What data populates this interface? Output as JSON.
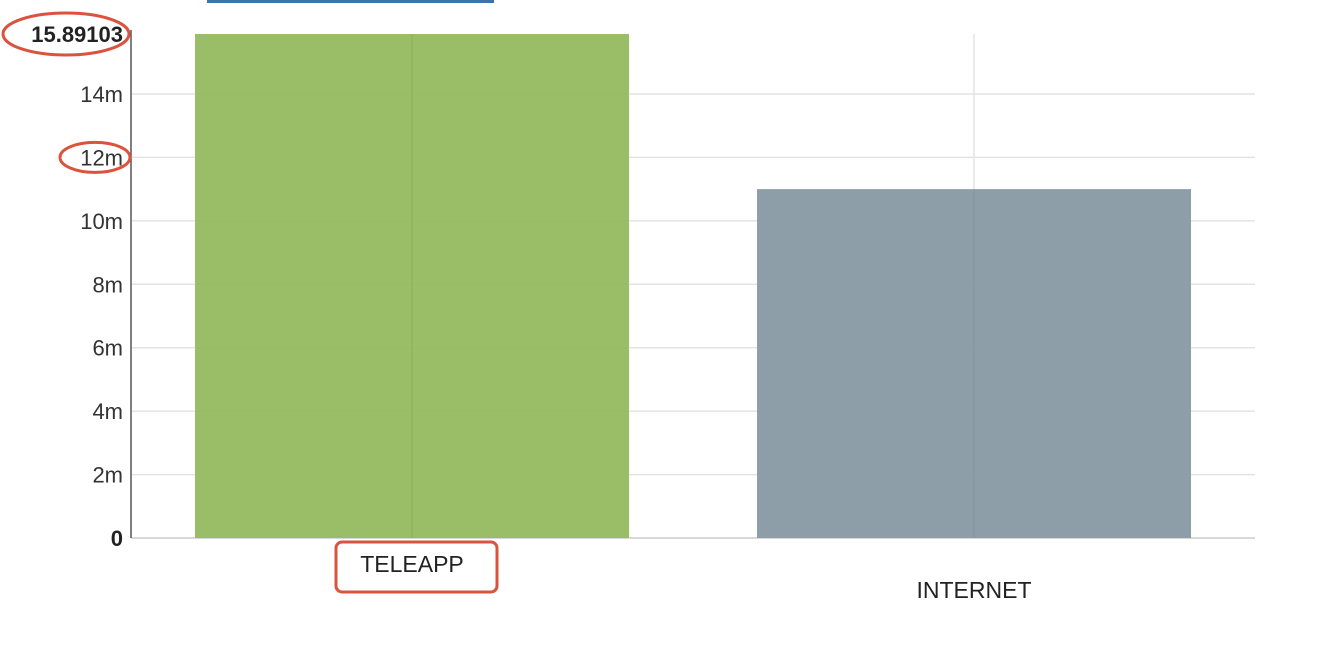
{
  "chart_data": {
    "type": "bar",
    "categories": [
      "TELEAPP",
      "INTERNET"
    ],
    "values": [
      15.89103,
      11.0
    ],
    "value_unit": "millions",
    "ylim": [
      0,
      15.89103
    ],
    "y_ticks": [
      {
        "value": 0,
        "label": "0"
      },
      {
        "value": 2,
        "label": "2m"
      },
      {
        "value": 4,
        "label": "4m"
      },
      {
        "value": 6,
        "label": "6m"
      },
      {
        "value": 8,
        "label": "8m"
      },
      {
        "value": 10,
        "label": "10m"
      },
      {
        "value": 12,
        "label": "12m"
      },
      {
        "value": 14,
        "label": "14m"
      },
      {
        "value": 15.89103,
        "label": "15.89103"
      }
    ],
    "grid": true,
    "legend": "none",
    "colors": [
      "#97bb62",
      "#8a9ba5"
    ],
    "annotations": [
      {
        "type": "ellipse-highlight",
        "target": "y_tick",
        "label": "15.89103",
        "color": "#d9533f"
      },
      {
        "type": "ellipse-highlight",
        "target": "y_tick",
        "label": "12m",
        "color": "#d9533f"
      },
      {
        "type": "box-highlight",
        "target": "category",
        "label": "TELEAPP",
        "color": "#d9533f"
      }
    ]
  },
  "top_bar_color": "#3e74a6"
}
